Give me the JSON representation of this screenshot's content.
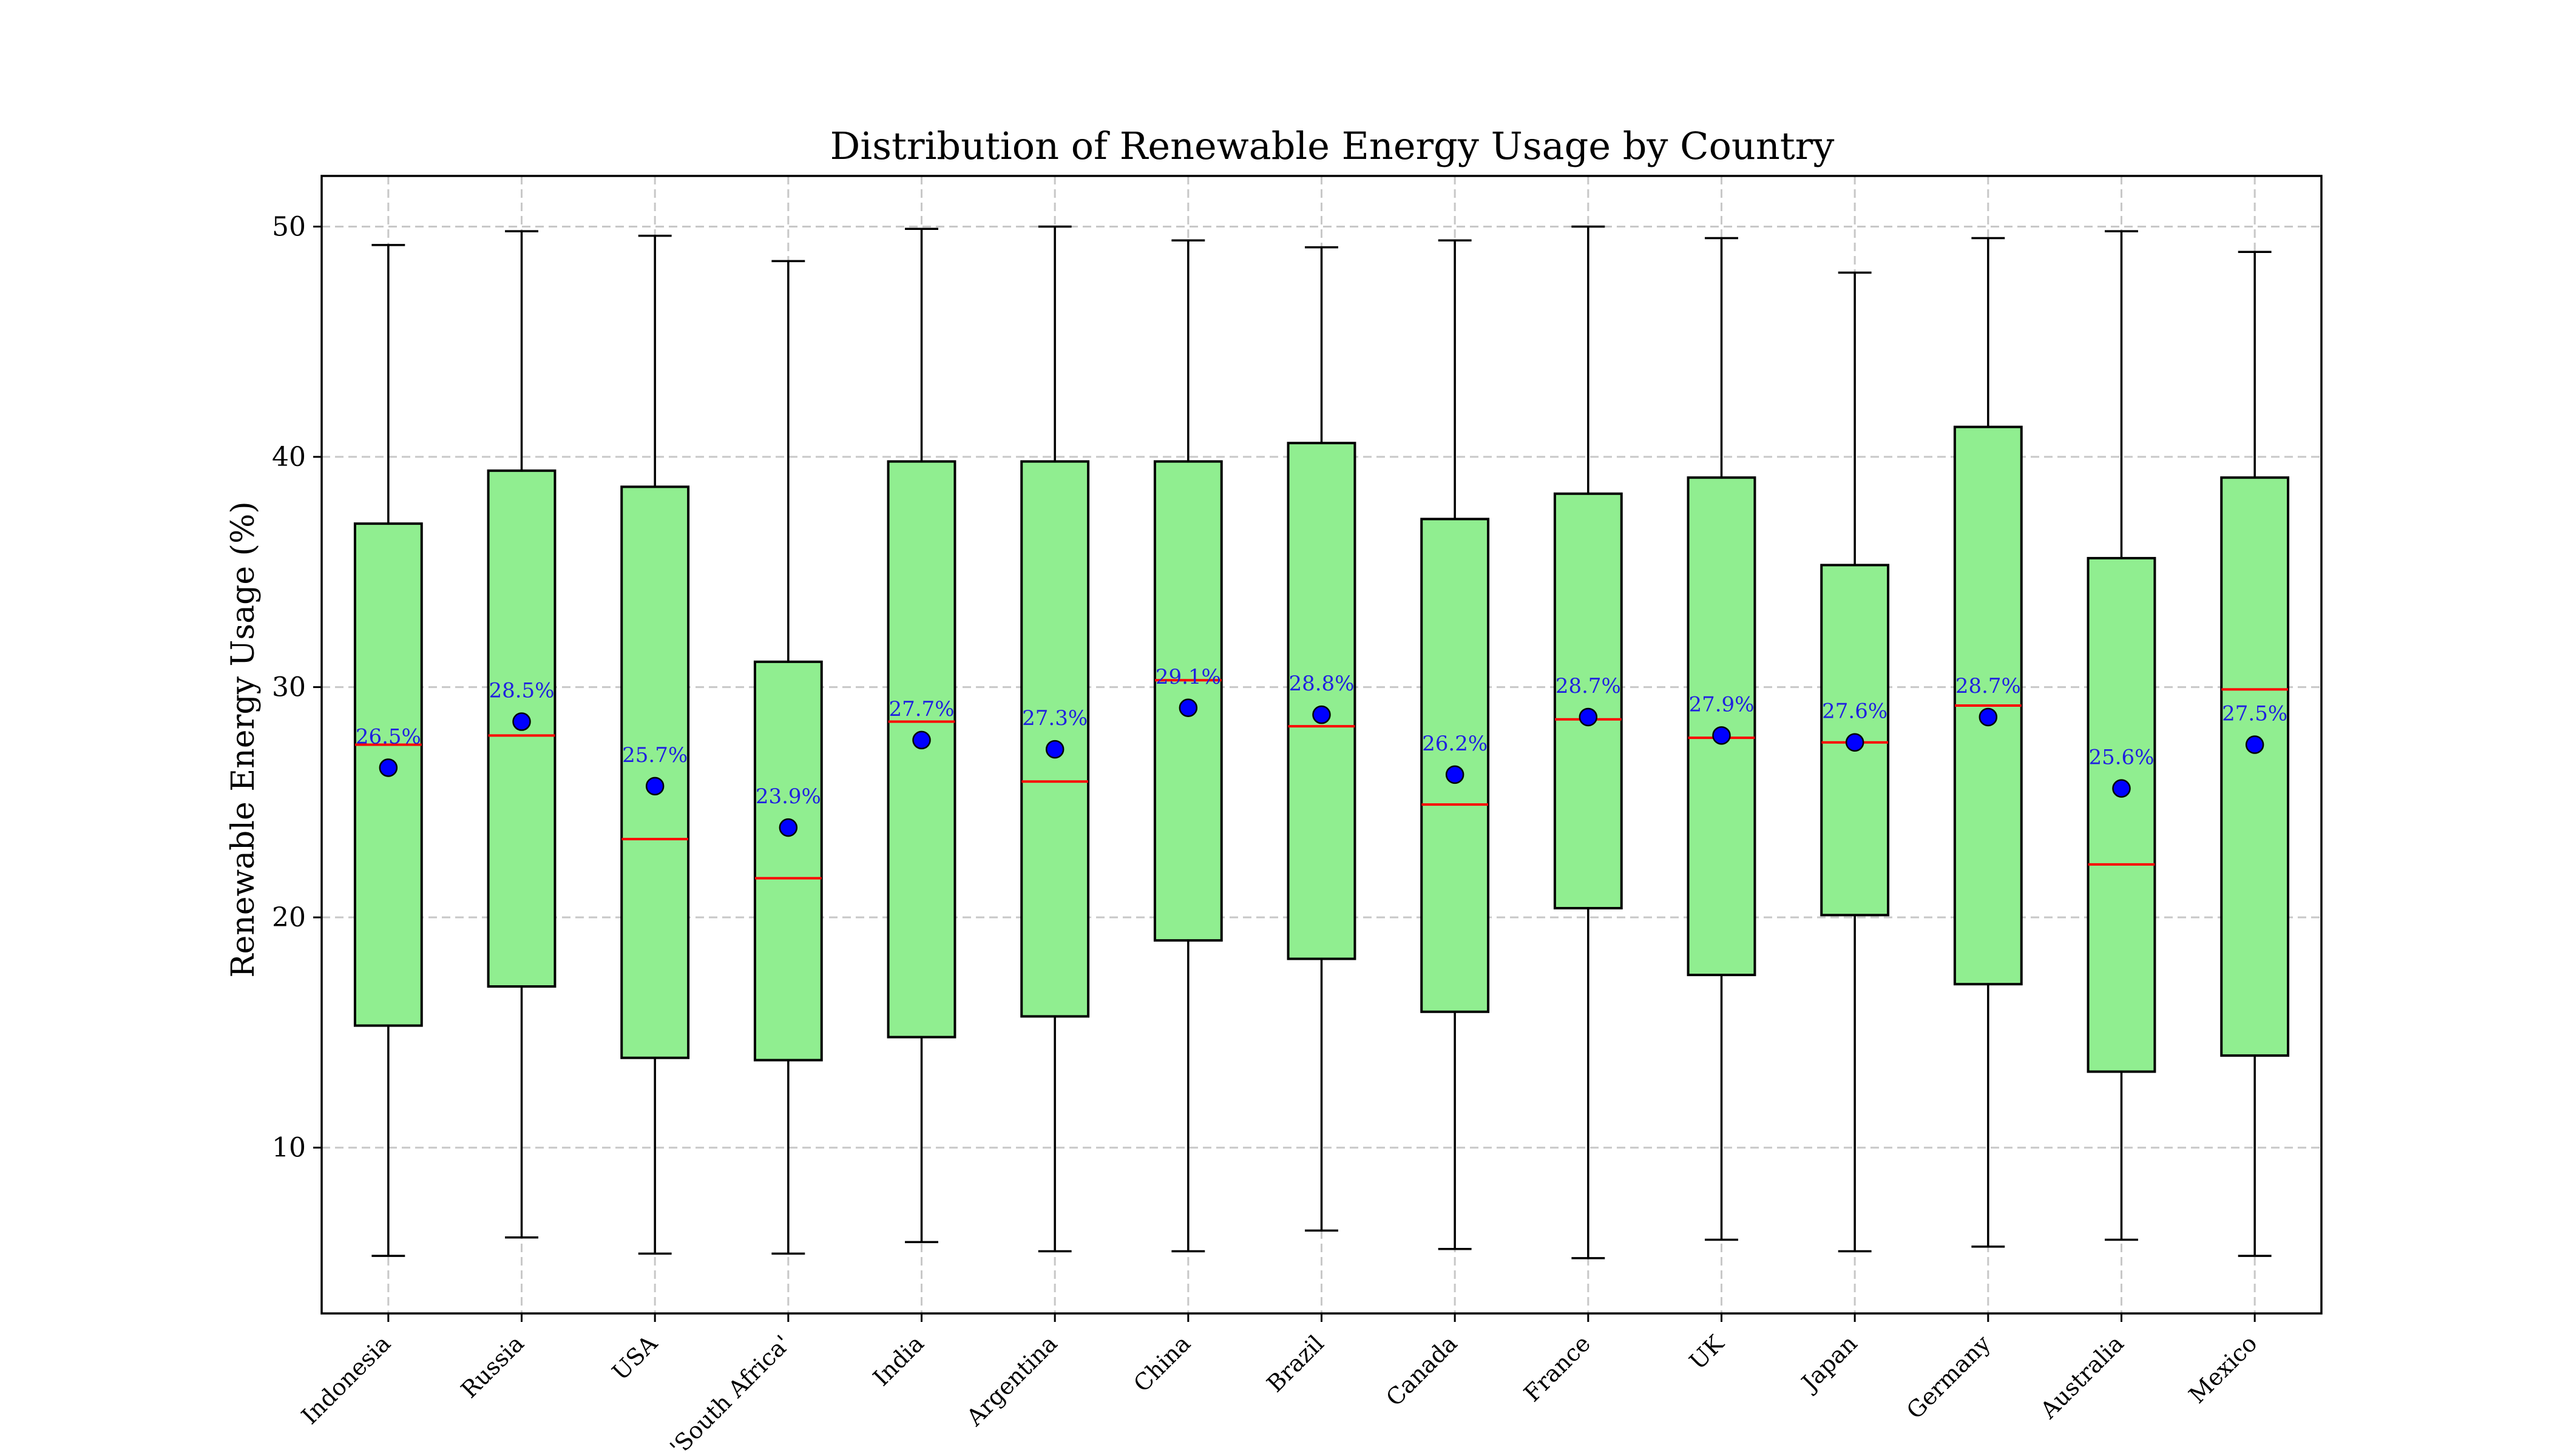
{
  "chart_data": {
    "type": "box",
    "title": "Distribution of Renewable Energy Usage by Country",
    "xlabel": "",
    "ylabel": "Renewable Energy Usage (%)",
    "ylim": [
      2.8,
      52.2
    ],
    "yticks": [
      10,
      20,
      30,
      40,
      50
    ],
    "grid": true,
    "colors": {
      "box_fill": "#90ee90",
      "median": "#ff0000",
      "mean_marker": "#0000ff",
      "mean_label": "#1f1fe0",
      "grid": "#c8c8c8"
    },
    "categories": [
      "Indonesia",
      "Russia",
      "USA",
      "'South Africa'",
      "India",
      "Argentina",
      "China",
      "Brazil",
      "Canada",
      "France",
      "UK",
      "Japan",
      "Germany",
      "Australia",
      "Mexico"
    ],
    "boxes": [
      {
        "whisker_low": 5.3,
        "q1": 15.3,
        "median": 27.5,
        "q3": 37.1,
        "whisker_high": 49.2,
        "mean": 26.5,
        "mean_label": "26.5%"
      },
      {
        "whisker_low": 6.1,
        "q1": 17.0,
        "median": 27.9,
        "q3": 39.4,
        "whisker_high": 49.8,
        "mean": 28.5,
        "mean_label": "28.5%"
      },
      {
        "whisker_low": 5.4,
        "q1": 13.9,
        "median": 23.4,
        "q3": 38.7,
        "whisker_high": 49.6,
        "mean": 25.7,
        "mean_label": "25.7%"
      },
      {
        "whisker_low": 5.4,
        "q1": 13.8,
        "median": 21.7,
        "q3": 31.1,
        "whisker_high": 48.5,
        "mean": 23.9,
        "mean_label": "23.9%"
      },
      {
        "whisker_low": 5.9,
        "q1": 14.8,
        "median": 28.5,
        "q3": 39.8,
        "whisker_high": 49.9,
        "mean": 27.7,
        "mean_label": "27.7%"
      },
      {
        "whisker_low": 5.5,
        "q1": 15.7,
        "median": 25.9,
        "q3": 39.8,
        "whisker_high": 50.0,
        "mean": 27.3,
        "mean_label": "27.3%"
      },
      {
        "whisker_low": 5.5,
        "q1": 19.0,
        "median": 30.3,
        "q3": 39.8,
        "whisker_high": 49.4,
        "mean": 29.1,
        "mean_label": "29.1%"
      },
      {
        "whisker_low": 6.4,
        "q1": 18.2,
        "median": 28.3,
        "q3": 40.6,
        "whisker_high": 49.1,
        "mean": 28.8,
        "mean_label": "28.8%"
      },
      {
        "whisker_low": 5.6,
        "q1": 15.9,
        "median": 24.9,
        "q3": 37.3,
        "whisker_high": 49.4,
        "mean": 26.2,
        "mean_label": "26.2%"
      },
      {
        "whisker_low": 5.2,
        "q1": 20.4,
        "median": 28.6,
        "q3": 38.4,
        "whisker_high": 50.0,
        "mean": 28.7,
        "mean_label": "28.7%"
      },
      {
        "whisker_low": 6.0,
        "q1": 17.5,
        "median": 27.8,
        "q3": 39.1,
        "whisker_high": 49.5,
        "mean": 27.9,
        "mean_label": "27.9%"
      },
      {
        "whisker_low": 5.5,
        "q1": 20.1,
        "median": 27.6,
        "q3": 35.3,
        "whisker_high": 48.0,
        "mean": 27.6,
        "mean_label": "27.6%"
      },
      {
        "whisker_low": 5.7,
        "q1": 17.1,
        "median": 29.2,
        "q3": 41.3,
        "whisker_high": 49.5,
        "mean": 28.7,
        "mean_label": "28.7%"
      },
      {
        "whisker_low": 6.0,
        "q1": 13.3,
        "median": 22.3,
        "q3": 35.6,
        "whisker_high": 49.8,
        "mean": 25.6,
        "mean_label": "25.6%"
      },
      {
        "whisker_low": 5.3,
        "q1": 14.0,
        "median": 29.9,
        "q3": 39.1,
        "whisker_high": 48.9,
        "mean": 27.5,
        "mean_label": "27.5%"
      }
    ]
  }
}
